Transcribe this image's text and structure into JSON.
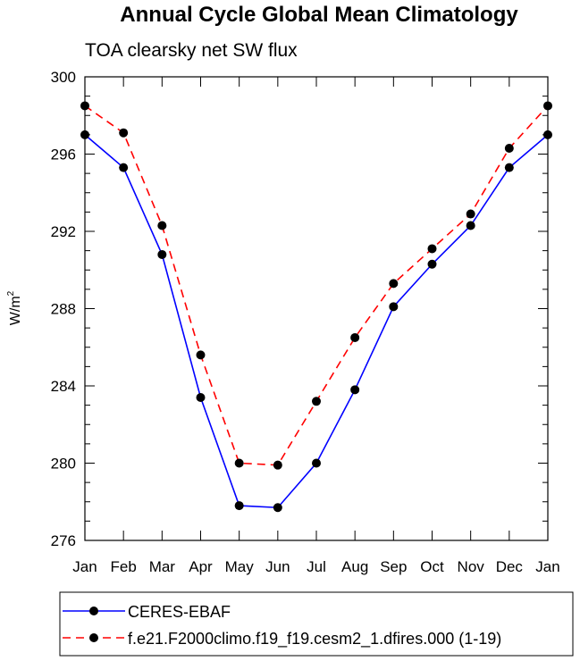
{
  "chart_data": {
    "type": "line",
    "title": "Annual Cycle Global Mean Climatology",
    "subtitle": "TOA clearsky net SW flux",
    "ylabel_base": "W/m",
    "ylabel_sup": "2",
    "categories": [
      "Jan",
      "Feb",
      "Mar",
      "Apr",
      "May",
      "Jun",
      "Jul",
      "Aug",
      "Sep",
      "Oct",
      "Nov",
      "Dec",
      "Jan"
    ],
    "ylim": [
      276,
      300
    ],
    "yticks": [
      276,
      280,
      284,
      288,
      292,
      296,
      300
    ],
    "grid": false,
    "legend_placement": "bottom",
    "series": [
      {
        "name": "CERES-EBAF",
        "color": "#0000ff",
        "dash": "solid",
        "marker": "circle",
        "values": [
          297.0,
          295.3,
          290.8,
          283.4,
          277.8,
          277.7,
          280.0,
          283.8,
          288.1,
          290.3,
          292.3,
          295.3,
          297.0
        ]
      },
      {
        "name": "f.e21.F2000climo.f19_f19.cesm2_1.dfires.000 (1-19)",
        "color": "#ff0000",
        "dash": "dashed",
        "marker": "circle",
        "values": [
          298.5,
          297.1,
          292.3,
          285.6,
          280.0,
          279.9,
          283.2,
          286.5,
          289.3,
          291.1,
          292.9,
          296.3,
          298.5
        ]
      }
    ]
  }
}
